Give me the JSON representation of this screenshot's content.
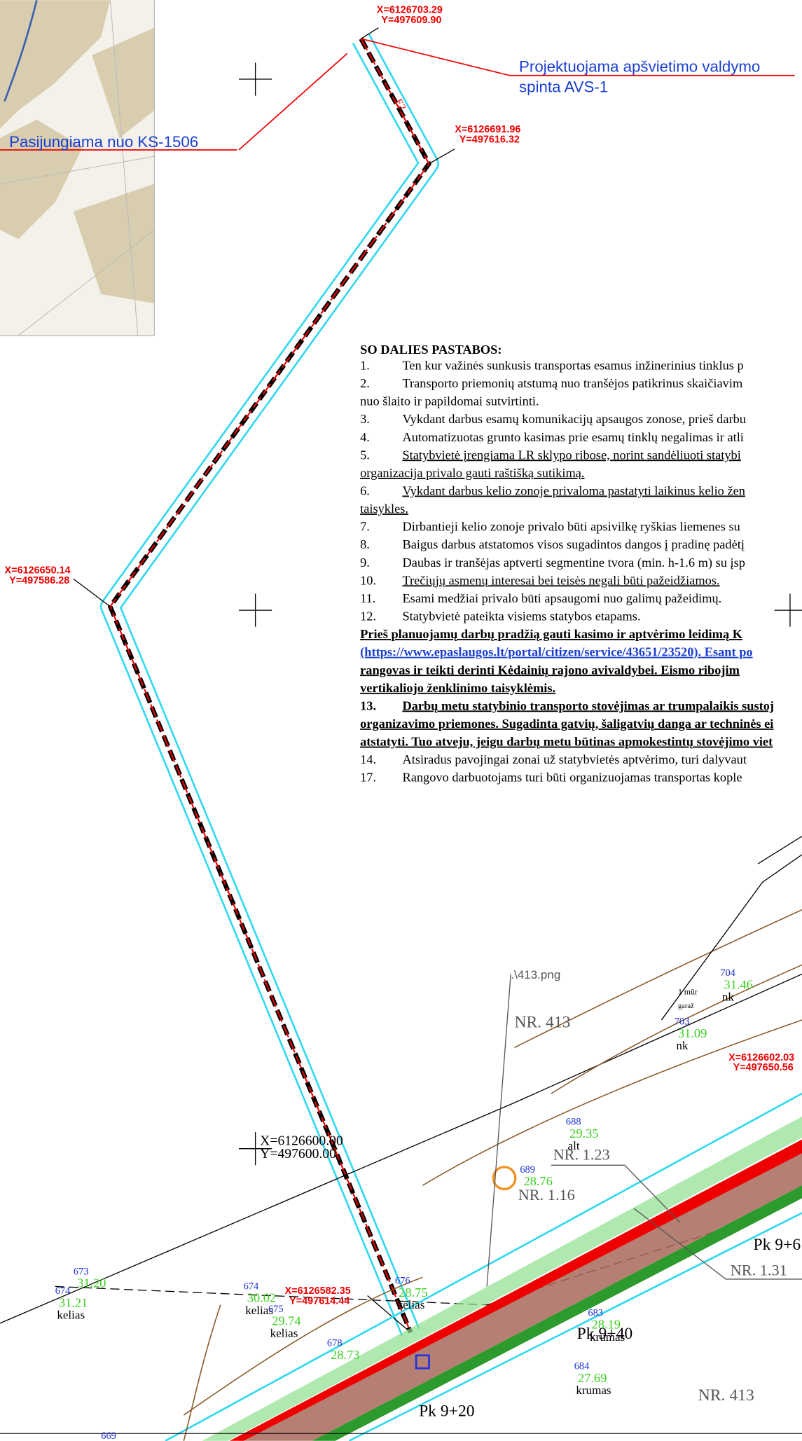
{
  "callouts": {
    "cabinet": [
      "Projektuojama apšvietimo valdymo",
      "spinta AVS-1"
    ],
    "connection": "Pasijungiama nuo KS-1506"
  },
  "coordinates": [
    {
      "x": "X=6126703.29",
      "y": "Y=497609.90"
    },
    {
      "x": "X=6126691.96",
      "y": "Y=497616.32"
    },
    {
      "x": "X=6126650.14",
      "y": "Y=497586.28"
    },
    {
      "x": "X=6126600.00",
      "y": "Y=497600.00"
    },
    {
      "x": "X=6126582.35",
      "y": "Y=497614.44"
    },
    {
      "x": "X=6126602.03",
      "y": "Y=497650.56"
    }
  ],
  "notes": {
    "title": "SO DALIES PASTABOS:",
    "items": [
      {
        "number": "1.",
        "lines": [
          "Ten kur važinės sunkusis transportas esamus inžinerinius tinklus p"
        ]
      },
      {
        "number": "2.",
        "lines": [
          "Transporto priemonių atstumą nuo tranšėjos  patikrinus skaičiavim",
          "nuo šlaito ir papildomai sutvirtinti."
        ]
      },
      {
        "number": "3.",
        "lines": [
          "Vykdant darbus esamų komunikacijų apsaugos zonose, prieš darbu"
        ]
      },
      {
        "number": "4.",
        "lines": [
          "Automatizuotas grunto kasimas prie esamų tinklų negalimas ir atli"
        ]
      },
      {
        "number": "5.",
        "lines": [
          "Statybvietė įrengiama LR  sklypo ribose, norint sandėliuoti statybi",
          "organizacija privalo gauti raštišką sutikimą."
        ],
        "underline": true
      },
      {
        "number": "6.",
        "lines": [
          "Vykdant darbus kelio zonoje privaloma pastatyti laikinus kelio žen",
          "taisykles."
        ],
        "underline": true
      },
      {
        "number": "7.",
        "lines": [
          "Dirbantieji kelio zonoje privalo būti apsivilkę ryškias liemenes su"
        ]
      },
      {
        "number": "8.",
        "lines": [
          "Baigus darbus atstatomos visos sugadintos dangos į pradinę padėtį"
        ]
      },
      {
        "number": "9.",
        "lines": [
          "Daubas ir tranšėjas aptverti segmentine tvora (min. h-1.6 m) su  įsp"
        ]
      },
      {
        "number": "10.",
        "lines": [
          "Trečiųjų asmenų interesai bei teisės negali būti pažeidžiamos."
        ],
        "underline": true
      },
      {
        "number": "11.",
        "lines": [
          "Esami medžiai privalo būti apsaugomi nuo galimų pažeidimų."
        ]
      },
      {
        "number": "12.",
        "lines": [
          "Statybvietė pateikta visiems statybos etapams."
        ]
      },
      {
        "lines": [
          "Prieš planuojamų darbų pradžią gauti kasimo ir aptvėrimo leidimą K",
          "(https://www.epaslaugos.lt/portal/citizen/service/43651/23520). Esant po",
          "rangovas ir teikti derinti Kėdainių rajono avivaldybei. Eismo ribojim",
          "vertikaliojo ženklinimo taisyklėmis."
        ],
        "bold": true,
        "underline": true
      },
      {
        "number": "13.",
        "lines": [
          "Darbų metu statybinio transporto stovėjimas ar trumpalaikis sustoj",
          "organizavimo priemones. Sugadinta gatvių, šaligatvių danga ar techninės ei",
          "atstatyti. Tuo atveju, jeigu darbų metu būtinas apmokestintų stovėjimo viet"
        ],
        "bold": true,
        "underline": true
      },
      {
        "number": "14.",
        "lines": [
          "Atsiradus pavojingai zonai už statybvietės aptvėrimo, turi dalyvaut"
        ]
      },
      {
        "number": "17.",
        "lines": [
          "Rangovo darbuotojams turi būti organizuojamas transportas kople"
        ]
      }
    ]
  },
  "survey_points": [
    {
      "id": "673",
      "elevation": "31.20"
    },
    {
      "id": "674",
      "elevation": "31.21",
      "label": "kelias"
    },
    {
      "id": "674",
      "elevation": "30.02",
      "label": "kelias"
    },
    {
      "id": "675",
      "elevation": "29.74",
      "label": "kelias"
    },
    {
      "id": "676",
      "elevation": "28.75",
      "label": "kelias"
    },
    {
      "id": "678",
      "elevation": "28.73"
    },
    {
      "id": "688",
      "elevation": "29.35",
      "label": "alt"
    },
    {
      "id": "689",
      "elevation": "28.76"
    },
    {
      "id": "703",
      "elevation": "31.09",
      "label": "nk"
    },
    {
      "id": "704",
      "elevation": "31.46",
      "label": "nk"
    },
    {
      "id": "683",
      "elevation": "28.19",
      "label": "krumas"
    },
    {
      "id": "684",
      "elevation": "27.69",
      "label": "krumas"
    },
    {
      "id": "669"
    }
  ],
  "labels": [
    "NR. 413",
    "NR. 1.23",
    "NR. 1.16",
    "NR. 1.31",
    "Pk 9+40",
    "Pk 9+20",
    "Pk 9+6",
    "NR. 413",
    ".\\413.png",
    "E2",
    "1 mūr",
    "garaž"
  ]
}
